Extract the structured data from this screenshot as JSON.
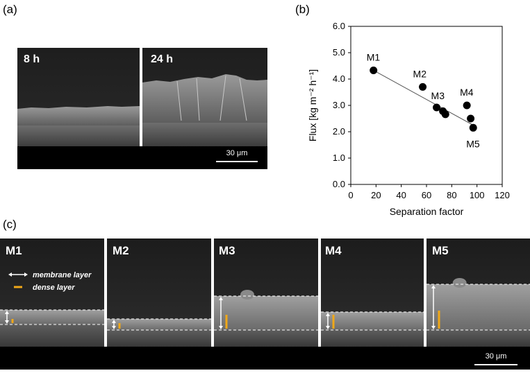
{
  "panels": {
    "a": "(a)",
    "b": "(b)",
    "c": "(c)"
  },
  "panel_a": {
    "left_label": "8 h",
    "right_label": "24 h",
    "scalebar": "30 μm"
  },
  "panel_c": {
    "labels": [
      "M1",
      "M2",
      "M3",
      "M4",
      "M5"
    ],
    "legend_membrane": "membrane layer",
    "legend_dense": "dense layer",
    "scalebar": "30 μm"
  },
  "colors": {
    "sem_bg": "#151515",
    "dense_layer": "#f0a818",
    "marker": "#000000",
    "trendline": "#555555"
  },
  "chart_data": {
    "type": "scatter",
    "title": "",
    "xlabel": "Separation factor",
    "ylabel": "Flux [kg m⁻² h⁻¹]",
    "xlim": [
      0,
      120
    ],
    "ylim": [
      0,
      6
    ],
    "x_ticks": [
      "0",
      "20",
      "40",
      "60",
      "80",
      "100",
      "120"
    ],
    "y_ticks": [
      "0.0",
      "1.0",
      "2.0",
      "3.0",
      "4.0",
      "5.0",
      "6.0"
    ],
    "points": [
      {
        "x": 18,
        "y": 4.33
      },
      {
        "x": 57,
        "y": 3.7
      },
      {
        "x": 68,
        "y": 2.92
      },
      {
        "x": 73,
        "y": 2.78
      },
      {
        "x": 75,
        "y": 2.66
      },
      {
        "x": 92,
        "y": 3.0
      },
      {
        "x": 95,
        "y": 2.5
      },
      {
        "x": 97,
        "y": 2.15
      }
    ],
    "point_labels": [
      {
        "text": "M1",
        "x": 18,
        "y": 4.33
      },
      {
        "text": "M2",
        "x": 57,
        "y": 3.7
      },
      {
        "text": "M3",
        "x": 68,
        "y": 2.92
      },
      {
        "text": "M4",
        "x": 92,
        "y": 3.0
      },
      {
        "text": "M5",
        "x": 97,
        "y": 2.15
      }
    ],
    "trendline": {
      "x": [
        18,
        97
      ],
      "y": [
        4.33,
        2.25
      ]
    },
    "grid": false,
    "legend": "none"
  }
}
